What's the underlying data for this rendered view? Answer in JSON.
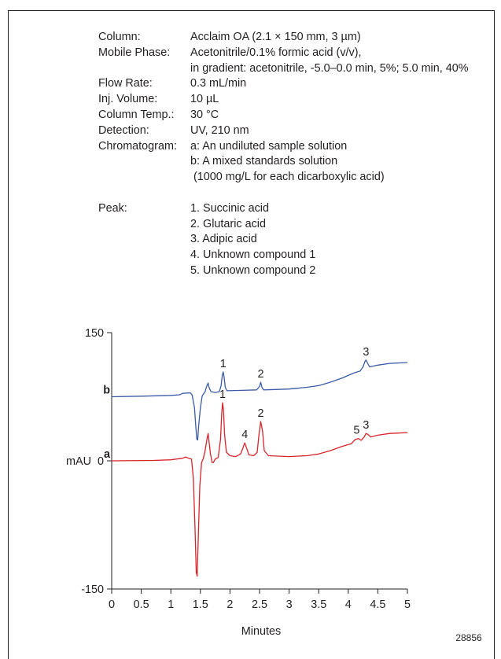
{
  "conditions": {
    "column_label": "Column:",
    "column_value": "Acclaim OA (2.1 × 150 mm, 3 µm)",
    "mobile_phase_label": "Mobile Phase:",
    "mobile_phase_value": "Acetonitrile/0.1% formic acid (v/v),",
    "mobile_phase_value_2": "in gradient: acetonitrile, -5.0–0.0 min, 5%; 5.0 min, 40%",
    "flow_rate_label": "Flow Rate:",
    "flow_rate_value": "0.3 mL/min",
    "inj_volume_label": "Inj. Volume:",
    "inj_volume_value": "10 µL",
    "column_temp_label": "Column Temp.:",
    "column_temp_value": "30 °C",
    "detection_label": "Detection:",
    "detection_value": "UV, 210 nm",
    "chromatogram_label": "Chromatogram:",
    "chromatogram_a": "a: An undiluted sample solution",
    "chromatogram_b": "b: A mixed standards solution",
    "chromatogram_b_note": "(1000 mg/L for each dicarboxylic acid)",
    "peak_label": "Peak:",
    "peaks": [
      "1. Succinic acid",
      "2. Glutaric acid",
      "3. Adipic acid",
      "4. Unknown compound 1",
      "5. Unknown compound 2"
    ]
  },
  "figure_id": "28856",
  "chart_data": {
    "type": "line",
    "xlabel": "Minutes",
    "ylabel": "mAU",
    "xlim": [
      0,
      5
    ],
    "ylim": [
      -150,
      150
    ],
    "x_ticks": [
      "0",
      "0.5",
      "1",
      "1.5",
      "2",
      "2.5",
      "3",
      "3.5",
      "4",
      "4.5",
      "5"
    ],
    "y_ticks": [
      "-150",
      "0",
      "150"
    ],
    "grid": false,
    "series": [
      {
        "name": "b",
        "color": "#3a5ba7",
        "baseline": 75,
        "points": [
          [
            0,
            75
          ],
          [
            0.5,
            75.6
          ],
          [
            1.0,
            76.6
          ],
          [
            1.15,
            77.3
          ],
          [
            1.2,
            79
          ],
          [
            1.28,
            79.3
          ],
          [
            1.33,
            79.5
          ],
          [
            1.36,
            77
          ],
          [
            1.4,
            62
          ],
          [
            1.42,
            42
          ],
          [
            1.44,
            25
          ],
          [
            1.455,
            24.5
          ],
          [
            1.47,
            40
          ],
          [
            1.5,
            62
          ],
          [
            1.53,
            76
          ],
          [
            1.58,
            81
          ],
          [
            1.6,
            86
          ],
          [
            1.63,
            91
          ],
          [
            1.65,
            85
          ],
          [
            1.68,
            81
          ],
          [
            1.75,
            80
          ],
          [
            1.82,
            81
          ],
          [
            1.85,
            88
          ],
          [
            1.87,
            100
          ],
          [
            1.885,
            104
          ],
          [
            1.9,
            98
          ],
          [
            1.92,
            86
          ],
          [
            1.95,
            82
          ],
          [
            2.2,
            82.5
          ],
          [
            2.45,
            83
          ],
          [
            2.5,
            87
          ],
          [
            2.52,
            92
          ],
          [
            2.54,
            86
          ],
          [
            2.57,
            83
          ],
          [
            3.0,
            84
          ],
          [
            3.3,
            86
          ],
          [
            3.5,
            88
          ],
          [
            3.7,
            92
          ],
          [
            3.9,
            97
          ],
          [
            4.1,
            103
          ],
          [
            4.2,
            105
          ],
          [
            4.25,
            110
          ],
          [
            4.28,
            116
          ],
          [
            4.3,
            118
          ],
          [
            4.32,
            115
          ],
          [
            4.36,
            110
          ],
          [
            4.5,
            112
          ],
          [
            4.7,
            114
          ],
          [
            5.0,
            115
          ]
        ],
        "peak_labels": [
          {
            "label": "1",
            "x": 1.885,
            "y": 104
          },
          {
            "label": "2",
            "x": 2.52,
            "y": 92
          },
          {
            "label": "3",
            "x": 4.3,
            "y": 118
          }
        ]
      },
      {
        "name": "a",
        "color": "#d7242b",
        "baseline": 0,
        "points": [
          [
            0,
            0
          ],
          [
            0.7,
            0.5
          ],
          [
            1.0,
            1.2
          ],
          [
            1.2,
            3
          ],
          [
            1.25,
            4.5
          ],
          [
            1.3,
            3
          ],
          [
            1.35,
            2
          ],
          [
            1.38,
            -20
          ],
          [
            1.41,
            -80
          ],
          [
            1.43,
            -130
          ],
          [
            1.445,
            -135
          ],
          [
            1.46,
            -100
          ],
          [
            1.49,
            -30
          ],
          [
            1.52,
            -2
          ],
          [
            1.55,
            3
          ],
          [
            1.58,
            12
          ],
          [
            1.61,
            25
          ],
          [
            1.63,
            32
          ],
          [
            1.65,
            20
          ],
          [
            1.67,
            8
          ],
          [
            1.7,
            -2
          ],
          [
            1.72,
            -2
          ],
          [
            1.75,
            2
          ],
          [
            1.8,
            4
          ],
          [
            1.84,
            25
          ],
          [
            1.86,
            55
          ],
          [
            1.875,
            68
          ],
          [
            1.89,
            60
          ],
          [
            1.91,
            30
          ],
          [
            1.94,
            10
          ],
          [
            2.0,
            6
          ],
          [
            2.1,
            5
          ],
          [
            2.18,
            8
          ],
          [
            2.22,
            15
          ],
          [
            2.25,
            21
          ],
          [
            2.28,
            15
          ],
          [
            2.32,
            7
          ],
          [
            2.4,
            6
          ],
          [
            2.46,
            10
          ],
          [
            2.49,
            30
          ],
          [
            2.52,
            46
          ],
          [
            2.55,
            35
          ],
          [
            2.58,
            12
          ],
          [
            2.65,
            6
          ],
          [
            3.0,
            5
          ],
          [
            3.3,
            6
          ],
          [
            3.5,
            8
          ],
          [
            3.7,
            12
          ],
          [
            3.9,
            17
          ],
          [
            4.05,
            20
          ],
          [
            4.12,
            25
          ],
          [
            4.17,
            26
          ],
          [
            4.22,
            24
          ],
          [
            4.27,
            28
          ],
          [
            4.3,
            32
          ],
          [
            4.33,
            31
          ],
          [
            4.38,
            28
          ],
          [
            4.5,
            30
          ],
          [
            4.7,
            32
          ],
          [
            5.0,
            33
          ]
        ],
        "peak_labels": [
          {
            "label": "1",
            "x": 1.875,
            "y": 68
          },
          {
            "label": "4",
            "x": 2.25,
            "y": 21
          },
          {
            "label": "2",
            "x": 2.52,
            "y": 46
          },
          {
            "label": "5",
            "x": 4.14,
            "y": 26
          },
          {
            "label": "3",
            "x": 4.3,
            "y": 32
          }
        ]
      }
    ]
  }
}
